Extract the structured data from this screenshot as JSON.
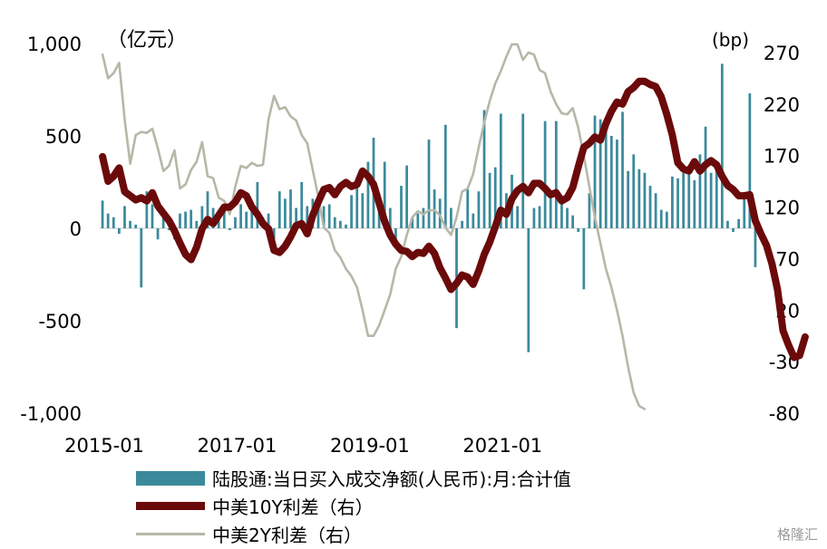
{
  "chart_data": {
    "type": "bar+line",
    "left_unit": "（亿元）",
    "right_unit": "(bp)",
    "left_axis": {
      "ylim": [
        -1000,
        1000
      ],
      "ticks": [
        "1,000",
        "500",
        "0",
        "-500",
        "-1,000"
      ],
      "tick_values": [
        1000,
        500,
        0,
        -500,
        -1000
      ]
    },
    "right_axis": {
      "ylim": [
        -80,
        270
      ],
      "ticks": [
        "270",
        "220",
        "170",
        "120",
        "70",
        "20",
        "-30",
        "-80"
      ],
      "tick_values": [
        270,
        220,
        170,
        120,
        70,
        20,
        -30,
        -80
      ]
    },
    "x_ticks": [
      "2015-01",
      "2017-01",
      "2019-01",
      "2021-01"
    ],
    "x_start": "2015-01",
    "bar_series": {
      "name": "陆股通:当日买入成交净额(人民币):月:合计值",
      "color": "#3b8a9b",
      "values": [
        150,
        80,
        60,
        -30,
        120,
        40,
        20,
        -320,
        200,
        130,
        -60,
        90,
        -10,
        -60,
        80,
        90,
        100,
        40,
        120,
        200,
        110,
        80,
        90,
        -10,
        60,
        130,
        90,
        110,
        250,
        60,
        80,
        -60,
        200,
        160,
        210,
        110,
        250,
        120,
        160,
        110,
        120,
        130,
        60,
        40,
        20,
        180,
        250,
        190,
        360,
        490,
        190,
        360,
        110,
        -60,
        230,
        340,
        60,
        80,
        110,
        480,
        210,
        160,
        560,
        110,
        -540,
        40,
        210,
        80,
        200,
        640,
        300,
        330,
        620,
        190,
        290,
        120,
        620,
        -670,
        110,
        120,
        580,
        200,
        580,
        170,
        110,
        70,
        -20,
        -330,
        190,
        610,
        590,
        580,
        500,
        480,
        630,
        310,
        400,
        320,
        300,
        230,
        190,
        100,
        90,
        280,
        270,
        300,
        310,
        260,
        400,
        550,
        300,
        320,
        890,
        40,
        -20,
        50,
        170,
        730,
        -210
      ],
      "y_domain": "left"
    },
    "line_series": [
      {
        "name": "中美10Y利差（右）",
        "color": "#6b0a0a",
        "points": [
          [
            0,
            169
          ],
          [
            1,
            145
          ],
          [
            2,
            150
          ],
          [
            3,
            158
          ],
          [
            4,
            135
          ],
          [
            5,
            131
          ],
          [
            6,
            127
          ],
          [
            7,
            129
          ],
          [
            8,
            126
          ],
          [
            9,
            134
          ],
          [
            10,
            121
          ],
          [
            11,
            114
          ],
          [
            12,
            107
          ],
          [
            13,
            97
          ],
          [
            14,
            85
          ],
          [
            15,
            74
          ],
          [
            16,
            69
          ],
          [
            17,
            81
          ],
          [
            18,
            99
          ],
          [
            19,
            108
          ],
          [
            20,
            104
          ],
          [
            21,
            112
          ],
          [
            22,
            120
          ],
          [
            23,
            120
          ],
          [
            24,
            125
          ],
          [
            25,
            134
          ],
          [
            26,
            131
          ],
          [
            27,
            120
          ],
          [
            28,
            113
          ],
          [
            29,
            104
          ],
          [
            30,
            99
          ],
          [
            31,
            78
          ],
          [
            32,
            76
          ],
          [
            33,
            82
          ],
          [
            34,
            91
          ],
          [
            35,
            102
          ],
          [
            36,
            104
          ],
          [
            37,
            94
          ],
          [
            38,
            112
          ],
          [
            39,
            125
          ],
          [
            40,
            137
          ],
          [
            41,
            139
          ],
          [
            42,
            132
          ],
          [
            43,
            140
          ],
          [
            44,
            144
          ],
          [
            45,
            140
          ],
          [
            46,
            142
          ],
          [
            47,
            155
          ],
          [
            48,
            150
          ],
          [
            49,
            142
          ],
          [
            50,
            124
          ],
          [
            51,
            106
          ],
          [
            52,
            93
          ],
          [
            53,
            84
          ],
          [
            54,
            78
          ],
          [
            55,
            77
          ],
          [
            56,
            72
          ],
          [
            57,
            76
          ],
          [
            58,
            75
          ],
          [
            59,
            82
          ],
          [
            60,
            75
          ],
          [
            61,
            61
          ],
          [
            62,
            51
          ],
          [
            63,
            40
          ],
          [
            64,
            46
          ],
          [
            65,
            54
          ],
          [
            66,
            52
          ],
          [
            67,
            45
          ],
          [
            68,
            58
          ],
          [
            69,
            74
          ],
          [
            70,
            86
          ],
          [
            71,
            101
          ],
          [
            72,
            117
          ],
          [
            73,
            113
          ],
          [
            74,
            128
          ],
          [
            75,
            136
          ],
          [
            76,
            140
          ],
          [
            77,
            134
          ],
          [
            78,
            143
          ],
          [
            79,
            143
          ],
          [
            80,
            138
          ],
          [
            81,
            132
          ],
          [
            82,
            134
          ],
          [
            83,
            126
          ],
          [
            84,
            129
          ],
          [
            85,
            139
          ],
          [
            86,
            159
          ],
          [
            87,
            178
          ],
          [
            88,
            182
          ],
          [
            89,
            188
          ],
          [
            90,
            185
          ],
          [
            91,
            201
          ],
          [
            92,
            213
          ],
          [
            93,
            222
          ],
          [
            94,
            220
          ],
          [
            95,
            232
          ],
          [
            96,
            236
          ],
          [
            97,
            242
          ],
          [
            98,
            242
          ],
          [
            99,
            239
          ],
          [
            100,
            237
          ],
          [
            101,
            227
          ],
          [
            102,
            210
          ],
          [
            103,
            190
          ],
          [
            104,
            163
          ],
          [
            105,
            157
          ],
          [
            106,
            155
          ],
          [
            107,
            164
          ],
          [
            108,
            155
          ],
          [
            109,
            161
          ],
          [
            110,
            165
          ],
          [
            111,
            161
          ],
          [
            112,
            150
          ],
          [
            113,
            141
          ],
          [
            114,
            137
          ],
          [
            115,
            131
          ],
          [
            116,
            131
          ],
          [
            117,
            132
          ],
          [
            118,
            107
          ],
          [
            119,
            94
          ],
          [
            120,
            83
          ],
          [
            121,
            65
          ],
          [
            122,
            40
          ],
          [
            123,
            0
          ],
          [
            124,
            -14
          ],
          [
            125,
            -26
          ],
          [
            126,
            -24
          ],
          [
            127,
            -6
          ]
        ]
      },
      {
        "name": "中美2Y利差（右）",
        "color": "#b7b7a8",
        "points": [
          [
            0,
            268
          ],
          [
            1,
            245
          ],
          [
            2,
            250
          ],
          [
            3,
            260
          ],
          [
            4,
            205
          ],
          [
            5,
            162
          ],
          [
            6,
            190
          ],
          [
            7,
            193
          ],
          [
            8,
            192
          ],
          [
            9,
            196
          ],
          [
            10,
            177
          ],
          [
            11,
            155
          ],
          [
            12,
            160
          ],
          [
            13,
            175
          ],
          [
            14,
            138
          ],
          [
            15,
            142
          ],
          [
            16,
            156
          ],
          [
            17,
            164
          ],
          [
            18,
            183
          ],
          [
            19,
            150
          ],
          [
            20,
            148
          ],
          [
            21,
            129
          ],
          [
            22,
            126
          ],
          [
            23,
            113
          ],
          [
            24,
            140
          ],
          [
            25,
            160
          ],
          [
            26,
            158
          ],
          [
            27,
            163
          ],
          [
            28,
            160
          ],
          [
            29,
            161
          ],
          [
            30,
            205
          ],
          [
            31,
            228
          ],
          [
            32,
            215
          ],
          [
            33,
            217
          ],
          [
            34,
            208
          ],
          [
            35,
            204
          ],
          [
            36,
            190
          ],
          [
            37,
            182
          ],
          [
            38,
            156
          ],
          [
            39,
            130
          ],
          [
            40,
            100
          ],
          [
            41,
            95
          ],
          [
            42,
            78
          ],
          [
            43,
            71
          ],
          [
            44,
            60
          ],
          [
            45,
            53
          ],
          [
            46,
            42
          ],
          [
            47,
            20
          ],
          [
            48,
            -5
          ],
          [
            49,
            -5
          ],
          [
            50,
            5
          ],
          [
            51,
            20
          ],
          [
            52,
            35
          ],
          [
            53,
            60
          ],
          [
            54,
            72
          ],
          [
            55,
            93
          ],
          [
            56,
            110
          ],
          [
            57,
            116
          ],
          [
            58,
            113
          ],
          [
            59,
            117
          ],
          [
            60,
            117
          ],
          [
            61,
            112
          ],
          [
            62,
            100
          ],
          [
            63,
            93
          ],
          [
            64,
            110
          ],
          [
            65,
            135
          ],
          [
            66,
            138
          ],
          [
            67,
            152
          ],
          [
            68,
            178
          ],
          [
            69,
            202
          ],
          [
            70,
            223
          ],
          [
            71,
            240
          ],
          [
            72,
            252
          ],
          [
            73,
            266
          ],
          [
            74,
            278
          ],
          [
            75,
            278
          ],
          [
            76,
            263
          ],
          [
            77,
            270
          ],
          [
            78,
            268
          ],
          [
            79,
            253
          ],
          [
            80,
            250
          ],
          [
            81,
            232
          ],
          [
            82,
            220
          ],
          [
            83,
            211
          ],
          [
            84,
            210
          ],
          [
            85,
            216
          ],
          [
            86,
            197
          ],
          [
            87,
            170
          ],
          [
            88,
            140
          ],
          [
            89,
            110
          ],
          [
            90,
            85
          ],
          [
            91,
            60
          ],
          [
            92,
            42
          ],
          [
            93,
            20
          ],
          [
            94,
            -5
          ],
          [
            95,
            -35
          ],
          [
            96,
            -60
          ],
          [
            97,
            -73
          ],
          [
            98,
            -76
          ]
        ]
      }
    ]
  },
  "legend": {
    "bar": "陆股通:当日买入成交净额(人民币):月:合计值",
    "line10": "中美10Y利差（右）",
    "line2": "中美2Y利差（右）"
  },
  "watermark": "格隆汇"
}
